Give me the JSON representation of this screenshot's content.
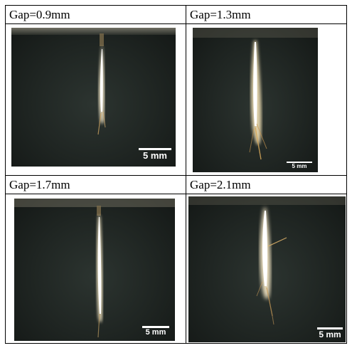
{
  "panels": [
    {
      "label": "Gap=0.9mm",
      "scale_label": "5 mm"
    },
    {
      "label": "Gap=1.3mm",
      "scale_label": "5 mm"
    },
    {
      "label": "Gap=1.7mm",
      "scale_label": "5 mm"
    },
    {
      "label": "Gap=2.1mm",
      "scale_label": "5 mm"
    }
  ]
}
